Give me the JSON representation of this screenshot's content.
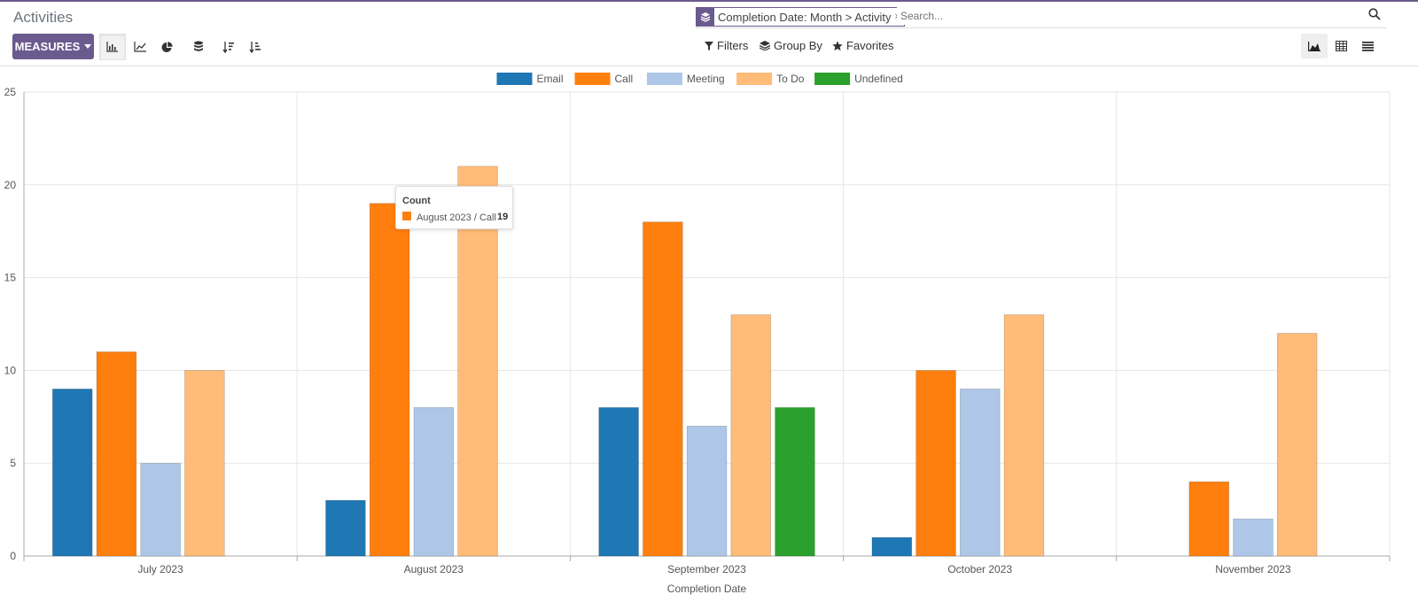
{
  "header": {
    "title": "Activities"
  },
  "search": {
    "facet": "Completion Date: Month > Activity",
    "facet_remove": "×",
    "placeholder": "Search..."
  },
  "toolbar": {
    "measures_label": "MEASURES"
  },
  "search_options": {
    "filters": "Filters",
    "group_by": "Group By",
    "favorites": "Favorites"
  },
  "tooltip": {
    "title": "Count",
    "label": "August 2023 / Call",
    "value": "19"
  },
  "chart_data": {
    "type": "bar",
    "categories": [
      "July 2023",
      "August 2023",
      "September 2023",
      "October 2023",
      "November 2023"
    ],
    "series": [
      {
        "name": "Email",
        "color": "#1f77b4",
        "values": [
          9,
          3,
          8,
          1,
          null
        ]
      },
      {
        "name": "Call",
        "color": "#ff7f0e",
        "values": [
          11,
          19,
          18,
          10,
          4
        ]
      },
      {
        "name": "Meeting",
        "color": "#aec7e8",
        "values": [
          5,
          8,
          7,
          9,
          2
        ]
      },
      {
        "name": "To Do",
        "color": "#ffbb78",
        "values": [
          10,
          21,
          13,
          13,
          12
        ]
      },
      {
        "name": "Undefined",
        "color": "#2ca02c",
        "values": [
          null,
          null,
          8,
          null,
          null
        ]
      }
    ],
    "xlabel": "Completion Date",
    "ylabel": "",
    "ylim": [
      0,
      25
    ],
    "yticks": [
      0,
      5,
      10,
      15,
      20,
      25
    ],
    "grid": true,
    "legend": "top-center",
    "highlighted": {
      "category": "August 2023",
      "series": "Call"
    }
  }
}
